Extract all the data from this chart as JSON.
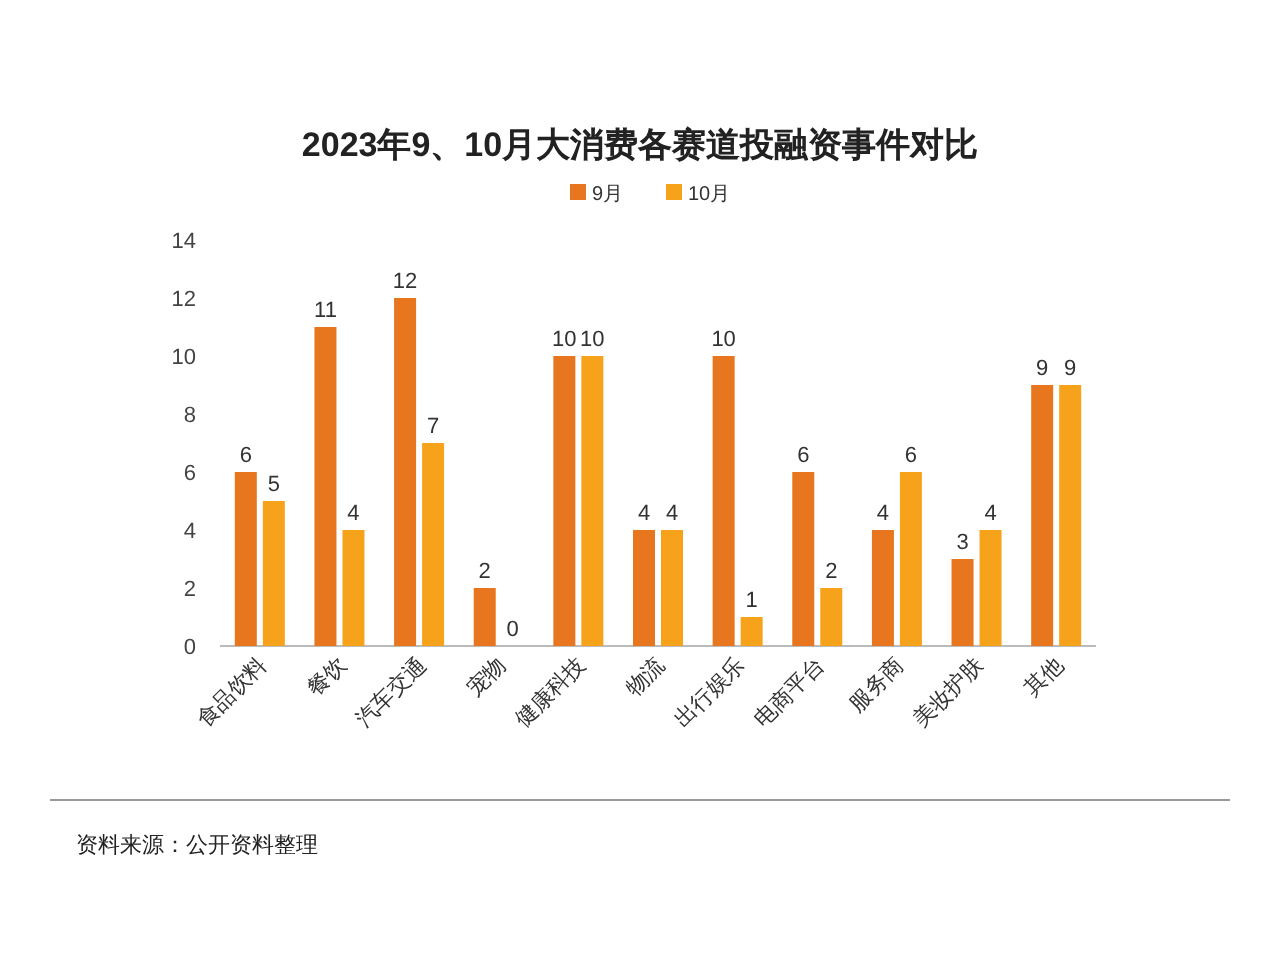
{
  "chart_data": {
    "type": "bar",
    "title": "2023年9、10月大消费各赛道投融资事件对比",
    "categories": [
      "食品饮料",
      "餐饮",
      "汽车交通",
      "宠物",
      "健康科技",
      "物流",
      "出行娱乐",
      "电商平台",
      "服务商",
      "美妆护肤",
      "其他"
    ],
    "series": [
      {
        "name": "9月",
        "color": "#e8761e",
        "values": [
          6,
          11,
          12,
          2,
          10,
          4,
          10,
          6,
          4,
          3,
          9
        ]
      },
      {
        "name": "10月",
        "color": "#f7a21b",
        "values": [
          5,
          4,
          7,
          0,
          10,
          4,
          1,
          2,
          6,
          4,
          9
        ]
      }
    ],
    "ylim": [
      0,
      14
    ],
    "yticks": [
      0,
      2,
      4,
      6,
      8,
      10,
      12,
      14
    ],
    "data_labels": true,
    "legend": "top",
    "annotations": [
      "资料来源：公开资料整理"
    ]
  }
}
